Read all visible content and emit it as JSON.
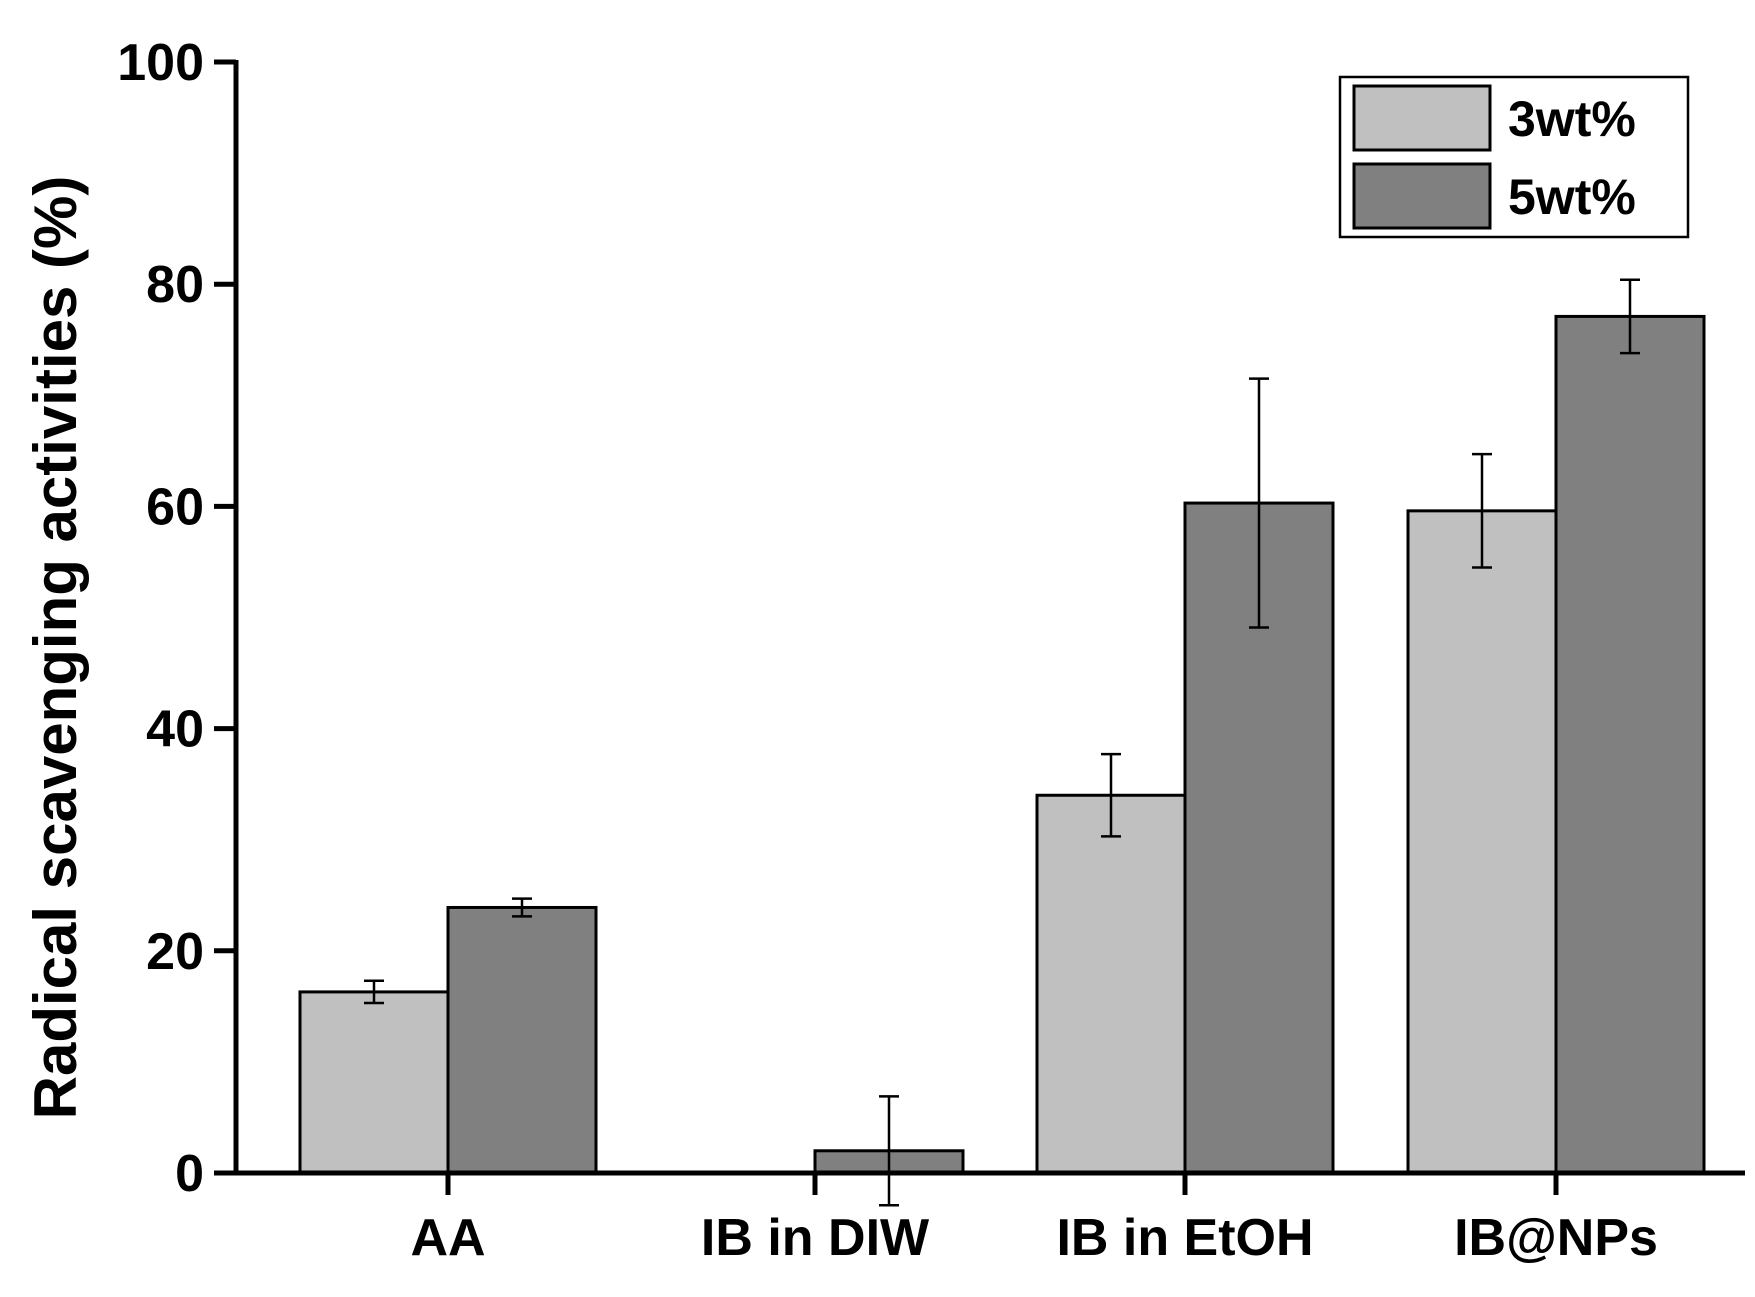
{
  "chart_data": {
    "type": "bar",
    "title": "",
    "xlabel": "",
    "ylabel": "Radical scavenging activities (%)",
    "ylim": [
      0,
      100
    ],
    "yticks": [
      0,
      20,
      40,
      60,
      80,
      100
    ],
    "tick_labels": [
      "0",
      "20",
      "40",
      "60",
      "80",
      "100"
    ],
    "categories": [
      "AA",
      "IB in DIW",
      "IB in EtOH",
      "IB@NPs"
    ],
    "legend_position": "top-right",
    "series": [
      {
        "name": "3wt%",
        "color": "#c0c0c0",
        "values": [
          16.3,
          null,
          34.0,
          59.6
        ],
        "errors": [
          1.0,
          null,
          3.7,
          5.1
        ]
      },
      {
        "name": "5wt%",
        "color": "#808080",
        "values": [
          23.9,
          2.0,
          60.3,
          77.1
        ],
        "errors": [
          0.8,
          4.9,
          11.2,
          3.3
        ]
      }
    ]
  }
}
